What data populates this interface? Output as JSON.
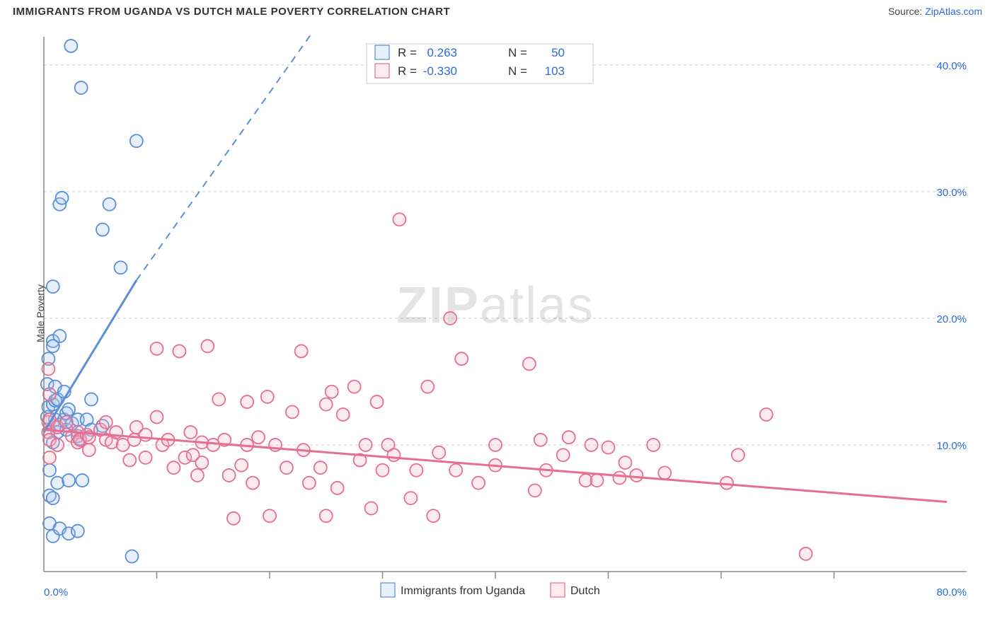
{
  "title": "IMMIGRANTS FROM UGANDA VS DUTCH MALE POVERTY CORRELATION CHART",
  "source_label": "Source:",
  "source_link": "ZipAtlas.com",
  "ylabel": "Male Poverty",
  "watermark_left": "ZIP",
  "watermark_right": "atlas",
  "chart": {
    "type": "scatter",
    "xlim": [
      0,
      80
    ],
    "ylim": [
      0,
      42
    ],
    "x_ticks": [
      0,
      80
    ],
    "x_tick_labels": [
      "0.0%",
      "80.0%"
    ],
    "x_minor_ticks": [
      10,
      20,
      30,
      40,
      50,
      60,
      70
    ],
    "y_ticks": [
      10,
      20,
      30,
      40
    ],
    "y_tick_labels": [
      "10.0%",
      "20.0%",
      "30.0%",
      "40.0%"
    ],
    "background_color": "#ffffff",
    "grid_color": "#d0d0d0",
    "axis_color": "#888888",
    "marker_radius": 9,
    "series": [
      {
        "name": "Immigrants from Uganda",
        "stroke": "#5b8fd6",
        "fill": "#a6c7ec",
        "R": "0.263",
        "N": "50",
        "trend": {
          "x1": 0,
          "y1": 11.0,
          "x2": 8.2,
          "y2": 23.0,
          "dash_to_x": 26,
          "dash_to_y": 49
        },
        "points": [
          [
            0.3,
            12.2
          ],
          [
            0.3,
            14.8
          ],
          [
            0.4,
            16.8
          ],
          [
            0.4,
            11.0
          ],
          [
            0.4,
            13.0
          ],
          [
            0.5,
            8.0
          ],
          [
            0.5,
            6.0
          ],
          [
            0.5,
            3.8
          ],
          [
            0.8,
            22.5
          ],
          [
            0.8,
            18.2
          ],
          [
            0.8,
            17.8
          ],
          [
            0.8,
            13.2
          ],
          [
            0.8,
            10.2
          ],
          [
            0.8,
            5.8
          ],
          [
            0.8,
            2.8
          ],
          [
            1.0,
            14.6
          ],
          [
            1.0,
            13.5
          ],
          [
            1.0,
            12.0
          ],
          [
            1.2,
            13.6
          ],
          [
            1.2,
            11.0
          ],
          [
            1.2,
            7.0
          ],
          [
            1.4,
            29.0
          ],
          [
            1.4,
            18.6
          ],
          [
            1.4,
            11.6
          ],
          [
            1.4,
            3.4
          ],
          [
            1.6,
            29.5
          ],
          [
            1.8,
            14.2
          ],
          [
            1.8,
            12.0
          ],
          [
            2.0,
            11.2
          ],
          [
            2.0,
            12.5
          ],
          [
            2.2,
            12.8
          ],
          [
            2.2,
            7.2
          ],
          [
            2.2,
            3.0
          ],
          [
            2.4,
            41.5
          ],
          [
            2.5,
            11.7
          ],
          [
            3.0,
            12.0
          ],
          [
            3.0,
            10.7
          ],
          [
            3.0,
            3.2
          ],
          [
            3.2,
            10.5
          ],
          [
            3.3,
            38.2
          ],
          [
            3.4,
            7.2
          ],
          [
            3.8,
            12.0
          ],
          [
            4.2,
            13.6
          ],
          [
            4.2,
            11.2
          ],
          [
            5.2,
            27.0
          ],
          [
            5.2,
            11.5
          ],
          [
            5.8,
            29.0
          ],
          [
            6.8,
            24.0
          ],
          [
            7.8,
            1.2
          ],
          [
            8.2,
            34.0
          ]
        ]
      },
      {
        "name": "Dutch",
        "stroke": "#e66f90",
        "fill": "#f5b6c7",
        "R": "-0.330",
        "N": "103",
        "trend": {
          "x1": 0,
          "y1": 11.2,
          "x2": 80,
          "y2": 5.5,
          "dash_to_x": 80,
          "dash_to_y": 5.5
        },
        "points": [
          [
            0.4,
            11.0
          ],
          [
            0.4,
            11.8
          ],
          [
            0.4,
            16.0
          ],
          [
            0.5,
            12.0
          ],
          [
            0.5,
            10.4
          ],
          [
            0.5,
            14.0
          ],
          [
            0.5,
            9.0
          ],
          [
            1.2,
            11.4
          ],
          [
            1.2,
            10.0
          ],
          [
            2.0,
            11.8
          ],
          [
            2.5,
            10.7
          ],
          [
            3.0,
            11.0
          ],
          [
            3.0,
            10.2
          ],
          [
            3.2,
            10.4
          ],
          [
            3.8,
            10.8
          ],
          [
            4.0,
            10.6
          ],
          [
            4.0,
            9.6
          ],
          [
            5.0,
            11.2
          ],
          [
            5.5,
            10.4
          ],
          [
            5.5,
            11.8
          ],
          [
            6.0,
            10.2
          ],
          [
            6.4,
            11.0
          ],
          [
            7.0,
            10.0
          ],
          [
            7.6,
            8.8
          ],
          [
            8.0,
            10.4
          ],
          [
            8.2,
            11.4
          ],
          [
            9.0,
            10.8
          ],
          [
            9.0,
            9.0
          ],
          [
            10.0,
            17.6
          ],
          [
            10.0,
            12.2
          ],
          [
            10.5,
            10.0
          ],
          [
            11.0,
            10.4
          ],
          [
            11.5,
            8.2
          ],
          [
            12.0,
            17.4
          ],
          [
            12.5,
            9.0
          ],
          [
            13.0,
            11.0
          ],
          [
            13.2,
            9.2
          ],
          [
            13.6,
            7.6
          ],
          [
            14.0,
            10.2
          ],
          [
            14.0,
            8.6
          ],
          [
            14.5,
            17.8
          ],
          [
            15.0,
            10.0
          ],
          [
            15.5,
            13.6
          ],
          [
            16.0,
            10.4
          ],
          [
            16.4,
            7.6
          ],
          [
            16.8,
            4.2
          ],
          [
            17.5,
            8.4
          ],
          [
            18.0,
            13.4
          ],
          [
            18.0,
            10.0
          ],
          [
            18.5,
            7.0
          ],
          [
            19.0,
            10.6
          ],
          [
            19.8,
            13.8
          ],
          [
            20.0,
            4.4
          ],
          [
            20.5,
            10.0
          ],
          [
            21.5,
            8.2
          ],
          [
            22.0,
            12.6
          ],
          [
            22.8,
            17.4
          ],
          [
            23.0,
            9.6
          ],
          [
            23.5,
            7.0
          ],
          [
            24.5,
            8.2
          ],
          [
            25.0,
            13.2
          ],
          [
            25.0,
            4.4
          ],
          [
            25.5,
            14.2
          ],
          [
            26.0,
            6.6
          ],
          [
            26.5,
            12.4
          ],
          [
            27.5,
            14.6
          ],
          [
            28.0,
            8.8
          ],
          [
            28.5,
            10.0
          ],
          [
            29.0,
            5.0
          ],
          [
            29.5,
            13.4
          ],
          [
            30.0,
            8.0
          ],
          [
            30.5,
            10.0
          ],
          [
            31.0,
            9.2
          ],
          [
            31.5,
            27.8
          ],
          [
            32.5,
            5.8
          ],
          [
            33.0,
            8.0
          ],
          [
            34.0,
            14.6
          ],
          [
            34.5,
            4.4
          ],
          [
            35.0,
            9.4
          ],
          [
            36.0,
            20.0
          ],
          [
            36.5,
            8.0
          ],
          [
            37.0,
            16.8
          ],
          [
            38.5,
            7.0
          ],
          [
            40.0,
            10.0
          ],
          [
            40.0,
            8.4
          ],
          [
            43.0,
            16.4
          ],
          [
            43.5,
            6.4
          ],
          [
            44.0,
            10.4
          ],
          [
            44.5,
            8.0
          ],
          [
            46.0,
            9.2
          ],
          [
            46.5,
            10.6
          ],
          [
            48.0,
            7.2
          ],
          [
            48.5,
            10.0
          ],
          [
            49.0,
            7.2
          ],
          [
            50.0,
            9.8
          ],
          [
            51.0,
            7.4
          ],
          [
            51.5,
            8.6
          ],
          [
            52.5,
            7.6
          ],
          [
            54.0,
            10.0
          ],
          [
            55.0,
            7.8
          ],
          [
            60.5,
            7.0
          ],
          [
            61.5,
            9.2
          ],
          [
            64.0,
            12.4
          ],
          [
            67.5,
            1.4
          ]
        ]
      }
    ],
    "legend_top": {
      "R_label": "R =",
      "N_label": "N ="
    },
    "legend_bottom_label0": "Immigrants from Uganda",
    "legend_bottom_label1": "Dutch"
  }
}
